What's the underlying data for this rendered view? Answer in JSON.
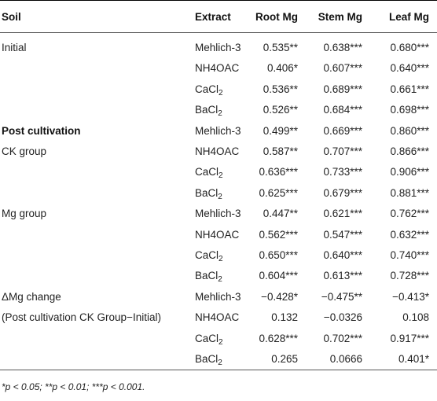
{
  "table": {
    "headers": {
      "soil": "Soil",
      "extract": "Extract",
      "root": "Root Mg",
      "stem": "Stem Mg",
      "leaf": "Leaf Mg"
    },
    "rows": [
      {
        "soil": "Initial",
        "extract": "Mehlich-3",
        "root": "0.535**",
        "stem": "0.638***",
        "leaf": "0.680***"
      },
      {
        "soil": "",
        "extract": "NH4OAC",
        "root": "0.406*",
        "stem": "0.607***",
        "leaf": "0.640***"
      },
      {
        "soil": "",
        "extract": "CaCl",
        "extract_sub": "2",
        "root": "0.536**",
        "stem": "0.689***",
        "leaf": "0.661***"
      },
      {
        "soil": "",
        "extract": "BaCl",
        "extract_sub": "2",
        "root": "0.526**",
        "stem": "0.684***",
        "leaf": "0.698***"
      },
      {
        "soil": "Post cultivation",
        "soil_bold": true,
        "extract": "Mehlich-3",
        "root": "0.499**",
        "stem": "0.669***",
        "leaf": "0.860***"
      },
      {
        "soil": "CK group",
        "extract": "NH4OAC",
        "root": "0.587**",
        "stem": "0.707***",
        "leaf": "0.866***"
      },
      {
        "soil": "",
        "extract": "CaCl",
        "extract_sub": "2",
        "root": "0.636***",
        "stem": "0.733***",
        "leaf": "0.906***"
      },
      {
        "soil": "",
        "extract": "BaCl",
        "extract_sub": "2",
        "root": "0.625***",
        "stem": "0.679***",
        "leaf": "0.881***"
      },
      {
        "soil": "Mg group",
        "extract": "Mehlich-3",
        "root": "0.447**",
        "stem": "0.621***",
        "leaf": "0.762***"
      },
      {
        "soil": "",
        "extract": "NH4OAC",
        "root": "0.562***",
        "stem": "0.547***",
        "leaf": "0.632***"
      },
      {
        "soil": "",
        "extract": "CaCl",
        "extract_sub": "2",
        "root": "0.650***",
        "stem": "0.640***",
        "leaf": "0.740***"
      },
      {
        "soil": "",
        "extract": "BaCl",
        "extract_sub": "2",
        "root": "0.604***",
        "stem": "0.613***",
        "leaf": "0.728***"
      },
      {
        "soil": "ΔMg change",
        "extract": "Mehlich-3",
        "root": "−0.428*",
        "stem": "−0.475**",
        "leaf": "−0.413*"
      },
      {
        "soil": "(Post cultivation CK Group−Initial)",
        "extract": "NH4OAC",
        "root": "0.132",
        "stem": "−0.0326",
        "leaf": "0.108"
      },
      {
        "soil": "",
        "extract": "CaCl",
        "extract_sub": "2",
        "root": "0.628***",
        "stem": "0.702***",
        "leaf": "0.917***"
      },
      {
        "soil": "",
        "extract": "BaCl",
        "extract_sub": "2",
        "root": "0.265",
        "stem": "0.0666",
        "leaf": "0.401*"
      }
    ]
  },
  "footnote": "*p < 0.05; **p < 0.01; ***p < 0.001."
}
